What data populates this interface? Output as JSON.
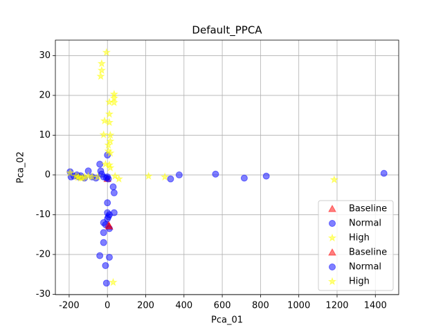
{
  "chart_data": {
    "type": "scatter",
    "title": "Default_PPCA",
    "x_label": "Pca_01",
    "y_label": "Pca_02",
    "xlim": [
      -272,
      1522
    ],
    "ylim": [
      -30.1,
      33.9
    ],
    "xticks": [
      -200,
      0,
      200,
      400,
      600,
      800,
      1000,
      1200,
      1400
    ],
    "yticks": [
      -30,
      -20,
      -10,
      0,
      10,
      20,
      30
    ],
    "grid": true,
    "legend": "lower right",
    "series": [
      {
        "name": "Baseline",
        "color": "#ff0000",
        "marker": "triangle",
        "x": [
          5,
          10,
          0
        ],
        "values": [
          -12.5,
          -13,
          -1
        ]
      },
      {
        "name": "Normal",
        "color": "#0000ff",
        "marker": "circle",
        "x": [
          -195,
          -190,
          -175,
          -160,
          -150,
          -140,
          -120,
          -100,
          -80,
          -60,
          -40,
          -35,
          -20,
          0,
          0,
          5,
          30,
          35,
          0,
          35,
          0,
          5,
          10,
          -20,
          -10,
          10,
          -20,
          -20,
          -40,
          10,
          -10,
          -5,
          330,
          375,
          565,
          715,
          830,
          1445
        ],
        "values": [
          0.8,
          -0.5,
          -0.3,
          0,
          -0.5,
          -0.2,
          -0.8,
          1,
          -0.5,
          -0.8,
          2.7,
          1,
          -0.5,
          5,
          -0.5,
          -1,
          -3,
          -4.5,
          -7,
          -9.5,
          -9.5,
          -10.5,
          -10,
          -12,
          -12.5,
          -13.5,
          -14.5,
          -17,
          -20.3,
          -20.7,
          -22.8,
          -27.2,
          -1,
          0,
          0.2,
          -0.8,
          -0.3,
          0.4
        ]
      },
      {
        "name": "High",
        "color": "#ffff00",
        "marker": "star",
        "x": [
          -5,
          -30,
          -30,
          -35,
          35,
          35,
          35,
          10,
          10,
          10,
          -15,
          -20,
          15,
          15,
          5,
          5,
          15,
          10,
          -10,
          15,
          -195,
          -150,
          -130,
          -100,
          -80,
          -50,
          40,
          60,
          215,
          300,
          1185,
          30,
          -140,
          -155
        ],
        "values": [
          30.8,
          28,
          26.3,
          24.8,
          20.3,
          19.3,
          18.2,
          18.3,
          15.3,
          13.2,
          13.6,
          10.1,
          10,
          8.5,
          7.5,
          6,
          5.5,
          2.5,
          2.7,
          1.8,
          0.5,
          -0.5,
          -0.8,
          -0.3,
          -0.5,
          -0.5,
          -0.3,
          -1,
          -0.3,
          -0.5,
          -1.2,
          -27,
          -0.8,
          -0.6
        ]
      },
      {
        "name": "Baseline",
        "color": "#ff0000",
        "marker": "triangle",
        "x": [
          8
        ],
        "values": [
          -12.8
        ]
      },
      {
        "name": "Normal",
        "color": "#0000ff",
        "marker": "circle",
        "x": [
          -5,
          0,
          -30
        ],
        "values": [
          -0.8,
          -11,
          0.2
        ]
      },
      {
        "name": "High",
        "color": "#ffff00",
        "marker": "star",
        "x": [
          -120,
          -165
        ],
        "values": [
          -0.5,
          -0.3
        ]
      }
    ]
  }
}
